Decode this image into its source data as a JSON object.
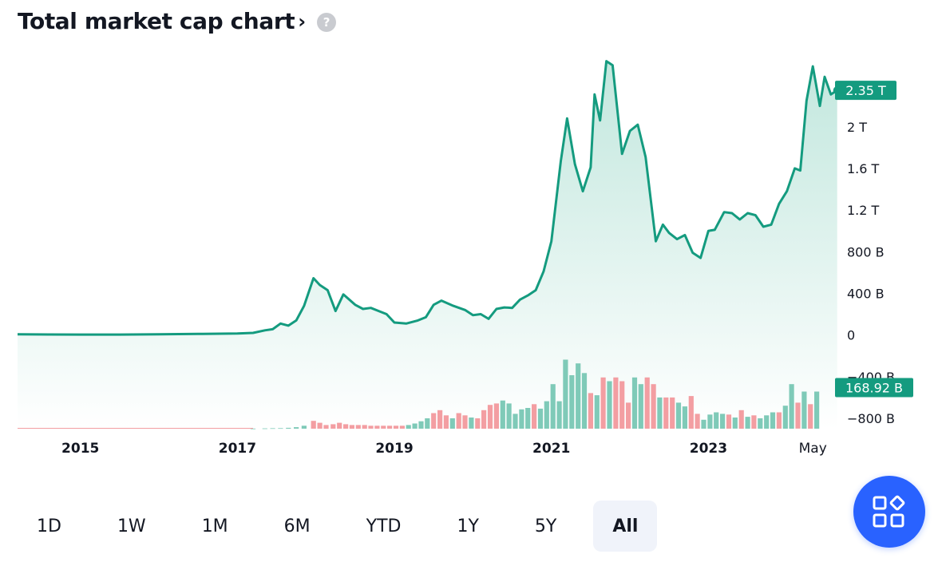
{
  "header": {
    "title": "Total market cap chart",
    "chevron": "›",
    "help": "?"
  },
  "ranges": [
    {
      "label": "1D",
      "active": false
    },
    {
      "label": "1W",
      "active": false
    },
    {
      "label": "1M",
      "active": false
    },
    {
      "label": "6M",
      "active": false
    },
    {
      "label": "YTD",
      "active": false
    },
    {
      "label": "1Y",
      "active": false
    },
    {
      "label": "5Y",
      "active": false
    },
    {
      "label": "All",
      "active": true
    }
  ],
  "fab": {
    "icon": "widgets-icon"
  },
  "chart_data": {
    "type": "area",
    "colors": {
      "line": "#149b7f",
      "fill": "#cfebe4",
      "vol_up": "#7fcab8",
      "vol_down": "#f39ea2",
      "badge": "#149b7f"
    },
    "x_ticks": [
      {
        "label": "2015",
        "x": 2015.0,
        "bold": true
      },
      {
        "label": "2017",
        "x": 2017.0,
        "bold": true
      },
      {
        "label": "2019",
        "x": 2019.0,
        "bold": true
      },
      {
        "label": "2021",
        "x": 2021.0,
        "bold": true
      },
      {
        "label": "2023",
        "x": 2023.0,
        "bold": true
      },
      {
        "label": "May",
        "x": 2024.33,
        "bold": false
      }
    ],
    "y_ticks": [
      {
        "label": "2 T",
        "v": 2000
      },
      {
        "label": "1.6 T",
        "v": 1600
      },
      {
        "label": "1.2 T",
        "v": 1200
      },
      {
        "label": "800 B",
        "v": 800
      },
      {
        "label": "400 B",
        "v": 400
      },
      {
        "label": "0",
        "v": 0
      },
      {
        "label": "−400 B",
        "v": -400
      },
      {
        "label": "−800 B",
        "v": -800
      }
    ],
    "x_range": [
      2014.2,
      2024.45
    ],
    "y_range": [
      -900,
      2650
    ],
    "series": [
      {
        "unit": "B",
        "points": [
          [
            2014.2,
            6
          ],
          [
            2014.6,
            5
          ],
          [
            2015.0,
            4
          ],
          [
            2015.5,
            4
          ],
          [
            2016.0,
            7
          ],
          [
            2016.5,
            10
          ],
          [
            2017.0,
            15
          ],
          [
            2017.2,
            20
          ],
          [
            2017.35,
            45
          ],
          [
            2017.45,
            55
          ],
          [
            2017.55,
            110
          ],
          [
            2017.65,
            90
          ],
          [
            2017.75,
            140
          ],
          [
            2017.85,
            280
          ],
          [
            2017.97,
            545
          ],
          [
            2018.05,
            480
          ],
          [
            2018.15,
            430
          ],
          [
            2018.25,
            230
          ],
          [
            2018.35,
            390
          ],
          [
            2018.5,
            290
          ],
          [
            2018.6,
            250
          ],
          [
            2018.7,
            260
          ],
          [
            2018.8,
            230
          ],
          [
            2018.9,
            200
          ],
          [
            2019.0,
            120
          ],
          [
            2019.15,
            110
          ],
          [
            2019.3,
            140
          ],
          [
            2019.4,
            170
          ],
          [
            2019.5,
            290
          ],
          [
            2019.6,
            330
          ],
          [
            2019.75,
            280
          ],
          [
            2019.9,
            240
          ],
          [
            2020.0,
            190
          ],
          [
            2020.1,
            200
          ],
          [
            2020.2,
            155
          ],
          [
            2020.3,
            250
          ],
          [
            2020.4,
            265
          ],
          [
            2020.5,
            260
          ],
          [
            2020.6,
            340
          ],
          [
            2020.7,
            380
          ],
          [
            2020.8,
            430
          ],
          [
            2020.9,
            610
          ],
          [
            2021.0,
            900
          ],
          [
            2021.12,
            1670
          ],
          [
            2021.2,
            2080
          ],
          [
            2021.3,
            1640
          ],
          [
            2021.4,
            1380
          ],
          [
            2021.5,
            1610
          ],
          [
            2021.55,
            2310
          ],
          [
            2021.62,
            2060
          ],
          [
            2021.7,
            2630
          ],
          [
            2021.78,
            2590
          ],
          [
            2021.9,
            1740
          ],
          [
            2022.0,
            1960
          ],
          [
            2022.1,
            2020
          ],
          [
            2022.2,
            1710
          ],
          [
            2022.33,
            900
          ],
          [
            2022.42,
            1060
          ],
          [
            2022.5,
            980
          ],
          [
            2022.6,
            920
          ],
          [
            2022.7,
            960
          ],
          [
            2022.8,
            790
          ],
          [
            2022.9,
            740
          ],
          [
            2023.0,
            1000
          ],
          [
            2023.08,
            1010
          ],
          [
            2023.2,
            1180
          ],
          [
            2023.3,
            1170
          ],
          [
            2023.4,
            1110
          ],
          [
            2023.5,
            1170
          ],
          [
            2023.6,
            1150
          ],
          [
            2023.7,
            1040
          ],
          [
            2023.8,
            1060
          ],
          [
            2023.9,
            1260
          ],
          [
            2024.0,
            1380
          ],
          [
            2024.1,
            1600
          ],
          [
            2024.17,
            1580
          ],
          [
            2024.25,
            2250
          ],
          [
            2024.33,
            2580
          ],
          [
            2024.42,
            2200
          ],
          [
            2024.48,
            2480
          ],
          [
            2024.56,
            2310
          ],
          [
            2024.64,
            2350
          ]
        ]
      }
    ],
    "volume": [
      {
        "x": 2017.2,
        "v": 0.002,
        "up": true
      },
      {
        "x": 2017.35,
        "v": 0.004,
        "up": true
      },
      {
        "x": 2017.45,
        "v": 0.006,
        "up": true
      },
      {
        "x": 2017.55,
        "v": 0.008,
        "up": true
      },
      {
        "x": 2017.65,
        "v": 0.012,
        "up": true
      },
      {
        "x": 2017.75,
        "v": 0.02,
        "up": true
      },
      {
        "x": 2017.85,
        "v": 0.04,
        "up": true
      },
      {
        "x": 2017.97,
        "v": 0.105,
        "up": false
      },
      {
        "x": 2018.05,
        "v": 0.08,
        "up": false
      },
      {
        "x": 2018.13,
        "v": 0.05,
        "up": false
      },
      {
        "x": 2018.22,
        "v": 0.06,
        "up": false
      },
      {
        "x": 2018.3,
        "v": 0.08,
        "up": false
      },
      {
        "x": 2018.38,
        "v": 0.06,
        "up": false
      },
      {
        "x": 2018.46,
        "v": 0.05,
        "up": false
      },
      {
        "x": 2018.54,
        "v": 0.05,
        "up": false
      },
      {
        "x": 2018.62,
        "v": 0.05,
        "up": false
      },
      {
        "x": 2018.7,
        "v": 0.04,
        "up": false
      },
      {
        "x": 2018.78,
        "v": 0.04,
        "up": false
      },
      {
        "x": 2018.86,
        "v": 0.04,
        "up": false
      },
      {
        "x": 2018.94,
        "v": 0.04,
        "up": false
      },
      {
        "x": 2019.02,
        "v": 0.04,
        "up": false
      },
      {
        "x": 2019.1,
        "v": 0.04,
        "up": false
      },
      {
        "x": 2019.18,
        "v": 0.05,
        "up": true
      },
      {
        "x": 2019.26,
        "v": 0.07,
        "up": true
      },
      {
        "x": 2019.34,
        "v": 0.1,
        "up": true
      },
      {
        "x": 2019.42,
        "v": 0.14,
        "up": true
      },
      {
        "x": 2019.5,
        "v": 0.21,
        "up": false
      },
      {
        "x": 2019.58,
        "v": 0.25,
        "up": false
      },
      {
        "x": 2019.66,
        "v": 0.18,
        "up": false
      },
      {
        "x": 2019.74,
        "v": 0.14,
        "up": true
      },
      {
        "x": 2019.82,
        "v": 0.21,
        "up": false
      },
      {
        "x": 2019.9,
        "v": 0.18,
        "up": false
      },
      {
        "x": 2019.98,
        "v": 0.15,
        "up": true
      },
      {
        "x": 2020.06,
        "v": 0.14,
        "up": false
      },
      {
        "x": 2020.14,
        "v": 0.25,
        "up": false
      },
      {
        "x": 2020.22,
        "v": 0.32,
        "up": false
      },
      {
        "x": 2020.3,
        "v": 0.34,
        "up": false
      },
      {
        "x": 2020.38,
        "v": 0.38,
        "up": true
      },
      {
        "x": 2020.46,
        "v": 0.34,
        "up": true
      },
      {
        "x": 2020.54,
        "v": 0.2,
        "up": true
      },
      {
        "x": 2020.62,
        "v": 0.26,
        "up": true
      },
      {
        "x": 2020.7,
        "v": 0.28,
        "up": true
      },
      {
        "x": 2020.78,
        "v": 0.33,
        "up": false
      },
      {
        "x": 2020.86,
        "v": 0.27,
        "up": true
      },
      {
        "x": 2020.94,
        "v": 0.37,
        "up": true
      },
      {
        "x": 2021.02,
        "v": 0.6,
        "up": true
      },
      {
        "x": 2021.1,
        "v": 0.37,
        "up": true
      },
      {
        "x": 2021.18,
        "v": 0.93,
        "up": true
      },
      {
        "x": 2021.26,
        "v": 0.72,
        "up": true
      },
      {
        "x": 2021.34,
        "v": 0.88,
        "up": true
      },
      {
        "x": 2021.42,
        "v": 0.75,
        "up": true
      },
      {
        "x": 2021.5,
        "v": 0.48,
        "up": false
      },
      {
        "x": 2021.58,
        "v": 0.45,
        "up": true
      },
      {
        "x": 2021.66,
        "v": 0.69,
        "up": false
      },
      {
        "x": 2021.74,
        "v": 0.64,
        "up": true
      },
      {
        "x": 2021.82,
        "v": 0.69,
        "up": false
      },
      {
        "x": 2021.9,
        "v": 0.64,
        "up": false
      },
      {
        "x": 2021.98,
        "v": 0.35,
        "up": false
      },
      {
        "x": 2022.06,
        "v": 0.69,
        "up": true
      },
      {
        "x": 2022.14,
        "v": 0.6,
        "up": true
      },
      {
        "x": 2022.22,
        "v": 0.69,
        "up": false
      },
      {
        "x": 2022.3,
        "v": 0.6,
        "up": false
      },
      {
        "x": 2022.38,
        "v": 0.42,
        "up": true
      },
      {
        "x": 2022.46,
        "v": 0.42,
        "up": false
      },
      {
        "x": 2022.54,
        "v": 0.42,
        "up": false
      },
      {
        "x": 2022.62,
        "v": 0.35,
        "up": true
      },
      {
        "x": 2022.7,
        "v": 0.3,
        "up": true
      },
      {
        "x": 2022.78,
        "v": 0.44,
        "up": false
      },
      {
        "x": 2022.86,
        "v": 0.2,
        "up": false
      },
      {
        "x": 2022.94,
        "v": 0.12,
        "up": true
      },
      {
        "x": 2023.02,
        "v": 0.19,
        "up": true
      },
      {
        "x": 2023.1,
        "v": 0.22,
        "up": true
      },
      {
        "x": 2023.18,
        "v": 0.2,
        "up": true
      },
      {
        "x": 2023.26,
        "v": 0.19,
        "up": false
      },
      {
        "x": 2023.34,
        "v": 0.15,
        "up": true
      },
      {
        "x": 2023.42,
        "v": 0.25,
        "up": false
      },
      {
        "x": 2023.5,
        "v": 0.16,
        "up": true
      },
      {
        "x": 2023.58,
        "v": 0.18,
        "up": false
      },
      {
        "x": 2023.66,
        "v": 0.14,
        "up": true
      },
      {
        "x": 2023.74,
        "v": 0.18,
        "up": true
      },
      {
        "x": 2023.82,
        "v": 0.22,
        "up": true
      },
      {
        "x": 2023.9,
        "v": 0.22,
        "up": false
      },
      {
        "x": 2023.98,
        "v": 0.31,
        "up": true
      },
      {
        "x": 2024.06,
        "v": 0.6,
        "up": true
      },
      {
        "x": 2024.14,
        "v": 0.35,
        "up": false
      },
      {
        "x": 2024.22,
        "v": 0.5,
        "up": true
      },
      {
        "x": 2024.3,
        "v": 0.33,
        "up": false
      },
      {
        "x": 2024.38,
        "v": 0.5,
        "up": true
      }
    ],
    "badges": [
      {
        "label": "2.35 T",
        "v": 2350
      },
      {
        "label": "168.92 B",
        "v": -505
      }
    ],
    "grid": false,
    "legend": "none"
  }
}
